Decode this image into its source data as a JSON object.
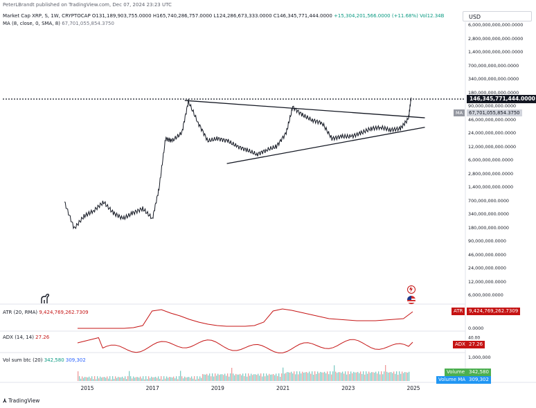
{
  "publisher": "PeterLBrandt published on TradingView.com, Dec 07, 2024 23:23 UTC",
  "header": {
    "symbol": "Market Cap XRP, S, 1W, CRYPTOCAP",
    "o": "O131,189,903,755.0000",
    "h": "H165,740,286,757.0000",
    "l": "L124,286,673,333.0000",
    "c": "C146,345,771,444.0000",
    "chg": "+15,304,201,566.0000 (+11.68%)",
    "vol": "Vol12.34B",
    "ma_label": "MA (8, close, 0, SMA, 8)",
    "ma_value": "67,701,055,854.3750"
  },
  "currency": "USD",
  "price_axis": {
    "ticks": [
      "6,000,000,000,000.0000",
      "2,800,000,000,000.0000",
      "1,400,000,000,000.0000",
      "700,000,000,000.0000",
      "340,000,000,000.0000",
      "180,000,000,000.0000",
      "90,000,000,000.0000",
      "46,000,000,000.0000",
      "24,000,000,000.0000",
      "12,000,000,000.0000",
      "6,000,000,000.0000",
      "2,800,000,000.0000",
      "1,400,000,000.0000",
      "700,000,000.0000",
      "340,000,000.0000",
      "180,000,000.0000",
      "90,000,000.0000",
      "46,000,000.0000",
      "24,000,000.0000",
      "12,000,000.0000",
      "6,000,000.0000"
    ],
    "last_price": "146,345,771,444.0000",
    "ma_tag": "MA",
    "ma_price": "67,701,055,854.3750"
  },
  "atr": {
    "label": "ATR (20, RMA)",
    "value": "9,424,769,262.7309",
    "tag": "ATR",
    "badge": "9,424,769,262.7309",
    "zero": "0.0000",
    "color": "#c51313"
  },
  "adx": {
    "label": "ADX (14, 14)",
    "value": "27.26",
    "tag": "ADX",
    "badge": "27.26",
    "tick": "40.00"
  },
  "volume": {
    "label": "Vol sum btc (20)",
    "v1": "342,580",
    "v2": "309,302",
    "tick": "1,000,000",
    "tag1": "Volume",
    "tag2": "Volume MA"
  },
  "time_axis": [
    "2015",
    "2017",
    "2019",
    "2021",
    "2023",
    "2025"
  ],
  "brand": "TradingView",
  "chart_data": {
    "type": "line",
    "title": "Market Cap XRP, S, 1W, CRYPTOCAP",
    "scale": "log",
    "x": [
      2014.3,
      2014.6,
      2014.9,
      2015.2,
      2015.5,
      2015.8,
      2016.1,
      2016.4,
      2016.7,
      2017.0,
      2017.2,
      2017.4,
      2017.6,
      2017.9,
      2018.1,
      2018.4,
      2018.7,
      2019.0,
      2019.3,
      2019.6,
      2019.9,
      2020.2,
      2020.5,
      2020.8,
      2021.1,
      2021.3,
      2021.6,
      2021.9,
      2022.2,
      2022.5,
      2022.8,
      2023.1,
      2023.4,
      2023.7,
      2024.0,
      2024.3,
      2024.6,
      2024.85,
      2024.93
    ],
    "y": [
      700000000,
      180000000,
      340000000,
      450000000,
      700000000,
      400000000,
      300000000,
      400000000,
      500000000,
      300000000,
      1400000000,
      18000000000,
      16000000000,
      24000000000,
      120000000000,
      40000000000,
      16000000000,
      18000000000,
      16000000000,
      12000000000,
      10000000000,
      8000000000,
      10000000000,
      12000000000,
      24000000000,
      90000000000,
      60000000000,
      46000000000,
      40000000000,
      18000000000,
      20000000000,
      20000000000,
      24000000000,
      30000000000,
      32000000000,
      28000000000,
      30000000000,
      50000000000,
      146345771444
    ],
    "ylim": [
      "6,000,000.0000",
      "6,000,000,000,000.0000"
    ],
    "x_ticks": [
      "2015",
      "2017",
      "2019",
      "2021",
      "2023",
      "2025"
    ],
    "trendlines": [
      {
        "from": [
          2017.99,
          126000000000
        ],
        "to": [
          2025.35,
          52000000000
        ]
      },
      {
        "from": [
          2019.28,
          5000000000
        ],
        "to": [
          2025.35,
          32000000000
        ]
      }
    ],
    "grid": false
  }
}
